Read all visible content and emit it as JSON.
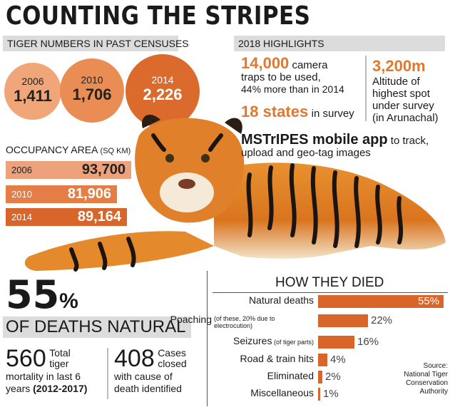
{
  "title": "COUNTING THE STRIPES",
  "census": {
    "header": "TIGER NUMBERS IN PAST CENSUSES",
    "items": [
      {
        "year": "2006",
        "value": "1,411",
        "color": "#f1a679"
      },
      {
        "year": "2010",
        "value": "1,706",
        "color": "#e98d55"
      },
      {
        "year": "2014",
        "value": "2,226",
        "color": "#db6b2c"
      }
    ]
  },
  "occupancy": {
    "header": "OCCUPANCY AREA",
    "unit": "(SQ KM)",
    "items": [
      {
        "year": "2006",
        "value": "93,700",
        "color": "#eda27c"
      },
      {
        "year": "2010",
        "value": "81,906",
        "color": "#e47d46"
      },
      {
        "year": "2014",
        "value": "89,164",
        "color": "#d8652a"
      }
    ]
  },
  "highlights": {
    "header": "2018 HIGHLIGHTS",
    "camera_num": "14,000",
    "camera_txt1": "camera",
    "camera_txt2": "traps to be used,",
    "camera_txt3": "44% more than in 2014",
    "alt_num": "3,200m",
    "alt_txt1": "Altitude of",
    "alt_txt2": "highest spot",
    "alt_txt3": "under survey",
    "alt_txt4": "(in Arunachal)",
    "states_num": "18 states",
    "states_txt": "in survey",
    "app_name": "MSTrIPES mobile app",
    "app_txt1": "to track,",
    "app_txt2": "upload and geo-tag images"
  },
  "natural": {
    "pct_big": "55",
    "pct_sym": "%",
    "label": "OF DEATHS NATURAL"
  },
  "mortality": {
    "total_num": "560",
    "total_txt1": "Total",
    "total_txt2": "tiger",
    "total_txt3": "mortality in last 6",
    "total_txt4": "years",
    "total_years": "(2012-2017)",
    "cases_num": "408",
    "cases_txt1": "Cases",
    "cases_txt2": "closed",
    "cases_txt3": "with cause of",
    "cases_txt4": "death identified"
  },
  "deaths_chart_header": "HOW THEY DIED",
  "source": {
    "line1": "Source:",
    "line2": "National Tiger",
    "line3": "Conservation",
    "line4": "Authority"
  },
  "chart_data": {
    "type": "bar",
    "title": "HOW THEY DIED",
    "orientation": "horizontal",
    "categories": [
      "Natural deaths",
      "Poaching",
      "Seizures",
      "Road & train hits",
      "Eliminated",
      "Miscellaneous"
    ],
    "notes": [
      "",
      "(of these, 20% due to electrocution)",
      "(of tiger parts)",
      "",
      "",
      ""
    ],
    "values": [
      55,
      22,
      16,
      4,
      2,
      1
    ],
    "value_labels": [
      "55%",
      "22%",
      "16%",
      "4%",
      "2%",
      "1%"
    ],
    "xlim": [
      0,
      55
    ],
    "bar_color": "#d9652a"
  }
}
